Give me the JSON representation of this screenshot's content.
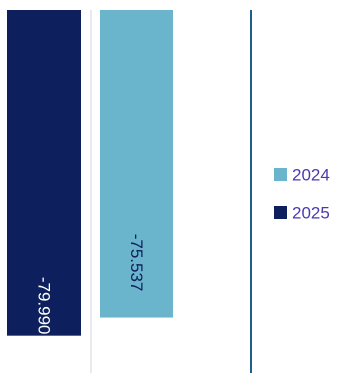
{
  "chart_data": {
    "type": "bar",
    "orientation": "vertical",
    "categories": [
      ""
    ],
    "series": [
      {
        "name": "2025",
        "values": [
          -79.99
        ],
        "label": "-79.990",
        "color": "#0d1f5c"
      },
      {
        "name": "2024",
        "values": [
          -75.537
        ],
        "label": "-75.537",
        "color": "#6ab4cc"
      }
    ],
    "title": "",
    "xlabel": "",
    "ylabel": "",
    "ylim": [
      -84,
      0
    ],
    "grid": false,
    "legend": {
      "position": "right",
      "items": [
        {
          "name": "2024",
          "color": "#6ab4cc"
        },
        {
          "name": "2025",
          "color": "#0d1f5c"
        }
      ]
    },
    "colors": {
      "legend_text": "#4a3ab0",
      "axis_line": "#1f5f8b",
      "separator": "#e4e4e4"
    }
  }
}
